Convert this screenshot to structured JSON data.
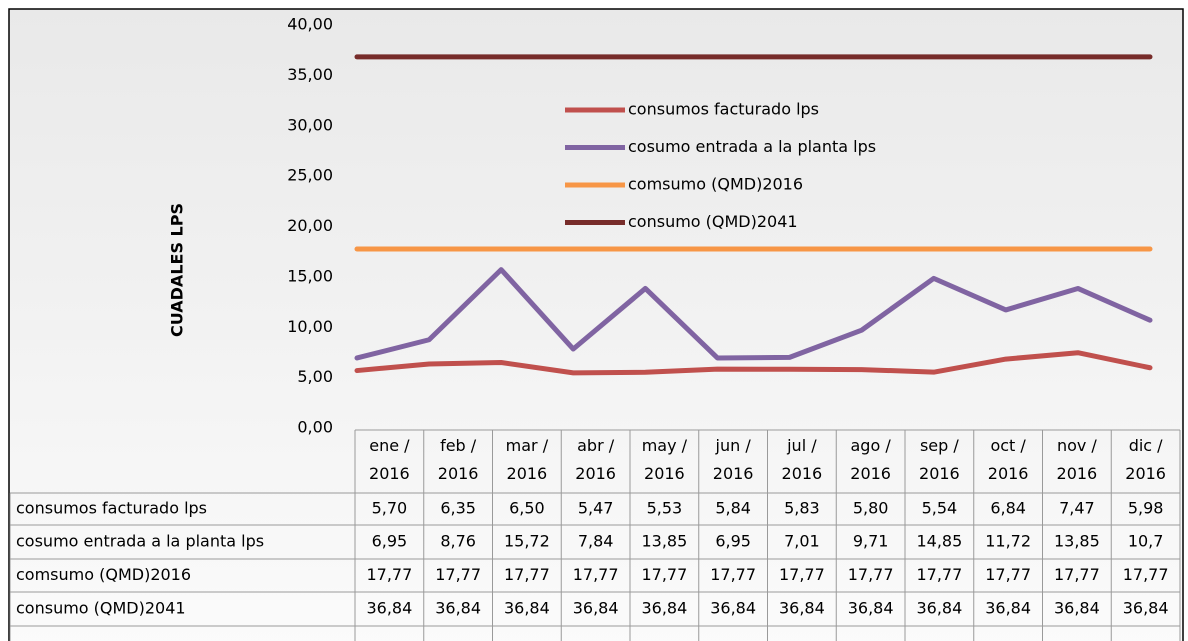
{
  "chart_data": {
    "type": "line",
    "y_label": "CUADALES LPS",
    "categories": [
      "ene / 2016",
      "feb / 2016",
      "mar / 2016",
      "abr / 2016",
      "may / 2016",
      "jun / 2016",
      "jul / 2016",
      "ago / 2016",
      "sep / 2016",
      "oct / 2016",
      "nov / 2016",
      "dic / 2016"
    ],
    "series": [
      {
        "name": "consumos facturado lps",
        "color": "#c0504d",
        "values": [
          5.7,
          6.35,
          6.5,
          5.47,
          5.53,
          5.84,
          5.83,
          5.8,
          5.54,
          6.84,
          7.47,
          5.98
        ],
        "value_labels": [
          "5,70",
          "6,35",
          "6,50",
          "5,47",
          "5,53",
          "5,84",
          "5,83",
          "5,80",
          "5,54",
          "6,84",
          "7,47",
          "5,98"
        ]
      },
      {
        "name": "cosumo entrada a la planta lps",
        "color": "#8064a2",
        "values": [
          6.95,
          8.76,
          15.72,
          7.84,
          13.85,
          6.95,
          7.01,
          9.71,
          14.85,
          11.72,
          13.85,
          10.7
        ],
        "value_labels": [
          "6,95",
          "8,76",
          "15,72",
          "7,84",
          "13,85",
          "6,95",
          "7,01",
          "9,71",
          "14,85",
          "11,72",
          "13,85",
          "10,7"
        ]
      },
      {
        "name": "comsumo (QMD)2016",
        "color": "#f79646",
        "values": [
          17.77,
          17.77,
          17.77,
          17.77,
          17.77,
          17.77,
          17.77,
          17.77,
          17.77,
          17.77,
          17.77,
          17.77
        ],
        "value_labels": [
          "17,77",
          "17,77",
          "17,77",
          "17,77",
          "17,77",
          "17,77",
          "17,77",
          "17,77",
          "17,77",
          "17,77",
          "17,77",
          "17,77"
        ]
      },
      {
        "name": "consumo (QMD)2041",
        "color": "#772c2a",
        "values": [
          36.84,
          36.84,
          36.84,
          36.84,
          36.84,
          36.84,
          36.84,
          36.84,
          36.84,
          36.84,
          36.84,
          36.84
        ],
        "value_labels": [
          "36,84",
          "36,84",
          "36,84",
          "36,84",
          "36,84",
          "36,84",
          "36,84",
          "36,84",
          "36,84",
          "36,84",
          "36,84",
          "36,84"
        ]
      }
    ],
    "ylim": [
      0,
      40
    ],
    "yticks": [
      {
        "value": 0,
        "label": "0,00"
      },
      {
        "value": 5,
        "label": "5,00"
      },
      {
        "value": 10,
        "label": "10,00"
      },
      {
        "value": 15,
        "label": "15,00"
      },
      {
        "value": 20,
        "label": "20,00"
      },
      {
        "value": 25,
        "label": "25,00"
      },
      {
        "value": 30,
        "label": "30,00"
      },
      {
        "value": 35,
        "label": "35,00"
      },
      {
        "value": 40,
        "label": "40,00"
      }
    ],
    "legend": "upper center"
  }
}
